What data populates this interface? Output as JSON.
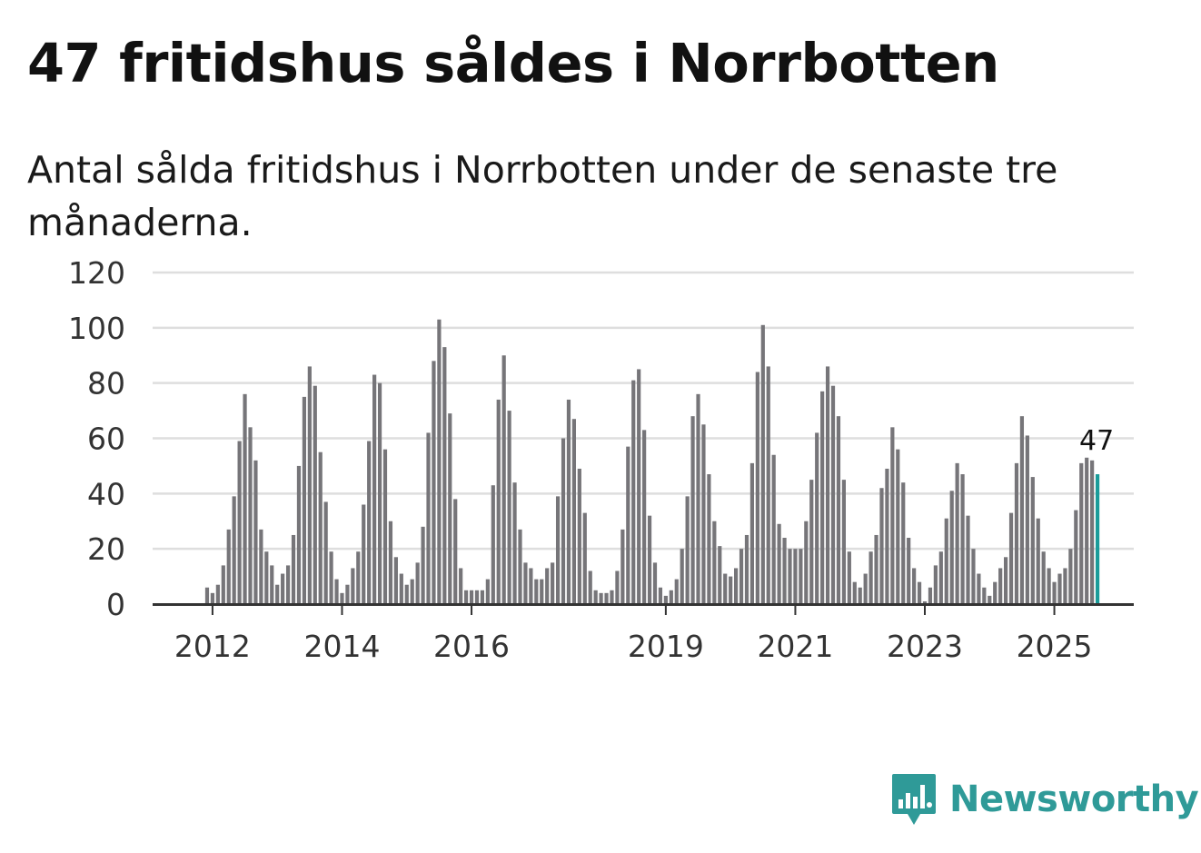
{
  "header": {
    "title": "47 fritidshus såldes i Norrbotten",
    "subtitle": "Antal sålda fritidshus i Norrbotten under de senaste tre månaderna."
  },
  "brand": {
    "name": "Newsworthy",
    "color": "#2f9a98",
    "icon": "newsworthy-chart-bubble-icon"
  },
  "colors": {
    "bar": "#767579",
    "highlight": "#1a9c9a",
    "grid": "#dedede",
    "axis": "#333333"
  },
  "chart_data": {
    "type": "bar",
    "title": "47 fritidshus såldes i Norrbotten",
    "subtitle": "Antal sålda fritidshus i Norrbotten under de senaste tre månaderna.",
    "xlabel": "",
    "ylabel": "",
    "ylim": [
      0,
      120
    ],
    "yticks": [
      0,
      20,
      40,
      60,
      80,
      100,
      120
    ],
    "grid": true,
    "granularity": "monthly (rolling three-month sum)",
    "start": "2011-10",
    "xticks": [
      {
        "label": "2012",
        "index": 3
      },
      {
        "label": "2014",
        "index": 27
      },
      {
        "label": "2016",
        "index": 51
      },
      {
        "label": "2019",
        "index": 87
      },
      {
        "label": "2021",
        "index": 111
      },
      {
        "label": "2023",
        "index": 135
      },
      {
        "label": "2025",
        "index": 159
      }
    ],
    "values": [
      0,
      0,
      6,
      4,
      7,
      14,
      27,
      39,
      59,
      76,
      64,
      52,
      27,
      19,
      14,
      7,
      11,
      14,
      25,
      50,
      75,
      86,
      79,
      55,
      37,
      19,
      9,
      4,
      7,
      13,
      19,
      36,
      59,
      83,
      80,
      56,
      30,
      17,
      11,
      7,
      9,
      15,
      28,
      62,
      88,
      103,
      93,
      69,
      38,
      13,
      5,
      5,
      5,
      5,
      9,
      43,
      74,
      90,
      70,
      44,
      27,
      15,
      13,
      9,
      9,
      13,
      15,
      39,
      60,
      74,
      67,
      49,
      33,
      12,
      5,
      4,
      4,
      5,
      12,
      27,
      57,
      81,
      85,
      63,
      32,
      15,
      6,
      3,
      5,
      9,
      20,
      39,
      68,
      76,
      65,
      47,
      30,
      21,
      11,
      10,
      13,
      20,
      25,
      51,
      84,
      101,
      86,
      54,
      29,
      24,
      20,
      20,
      20,
      30,
      45,
      62,
      77,
      86,
      79,
      68,
      45,
      19,
      8,
      6,
      11,
      19,
      25,
      42,
      49,
      64,
      56,
      44,
      24,
      13,
      8,
      1,
      6,
      14,
      19,
      31,
      41,
      51,
      47,
      32,
      20,
      11,
      6,
      3,
      8,
      13,
      17,
      33,
      51,
      68,
      61,
      46,
      31,
      19,
      13,
      8,
      11,
      13,
      20,
      34,
      51,
      53,
      52,
      47
    ],
    "highlight_last": true,
    "annotations": [
      {
        "text": "47",
        "target": "last"
      }
    ]
  }
}
